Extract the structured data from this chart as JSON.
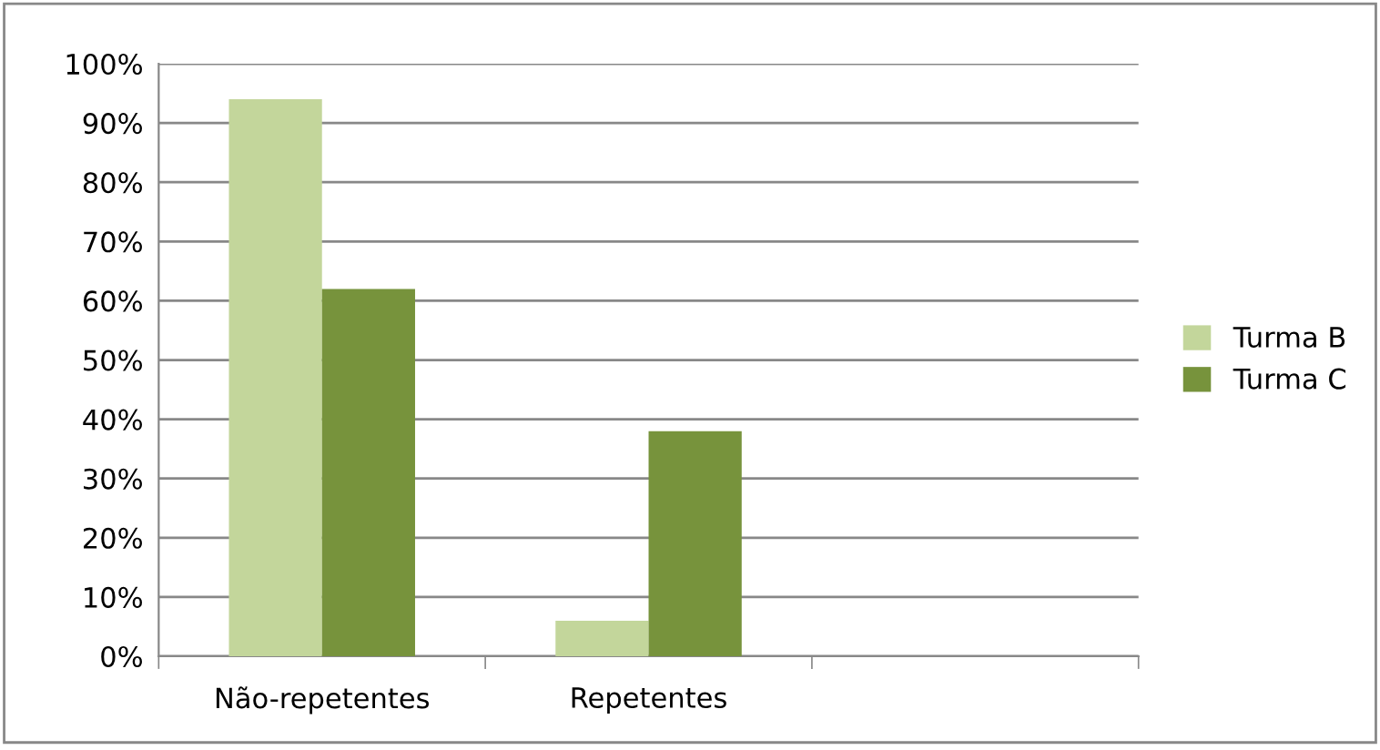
{
  "chart_data": {
    "type": "bar",
    "categories": [
      "Não-repetentes",
      "Repetentes",
      null
    ],
    "series": [
      {
        "name": "Turma B",
        "color": "#c3d69b",
        "values": [
          94,
          6,
          null
        ]
      },
      {
        "name": "Turma C",
        "color": "#77933c",
        "values": [
          62,
          38,
          null
        ]
      }
    ],
    "ylim": [
      0,
      100
    ],
    "yticks": [
      {
        "value": 0,
        "label": "0%"
      },
      {
        "value": 10,
        "label": "10%"
      },
      {
        "value": 20,
        "label": "20%"
      },
      {
        "value": 30,
        "label": "30%"
      },
      {
        "value": 40,
        "label": "40%"
      },
      {
        "value": 50,
        "label": "50%"
      },
      {
        "value": 60,
        "label": "60%"
      },
      {
        "value": 70,
        "label": "70%"
      },
      {
        "value": 80,
        "label": "80%"
      },
      {
        "value": 90,
        "label": "90%"
      },
      {
        "value": 100,
        "label": "100%"
      }
    ],
    "grid": "y",
    "legend": "right"
  }
}
